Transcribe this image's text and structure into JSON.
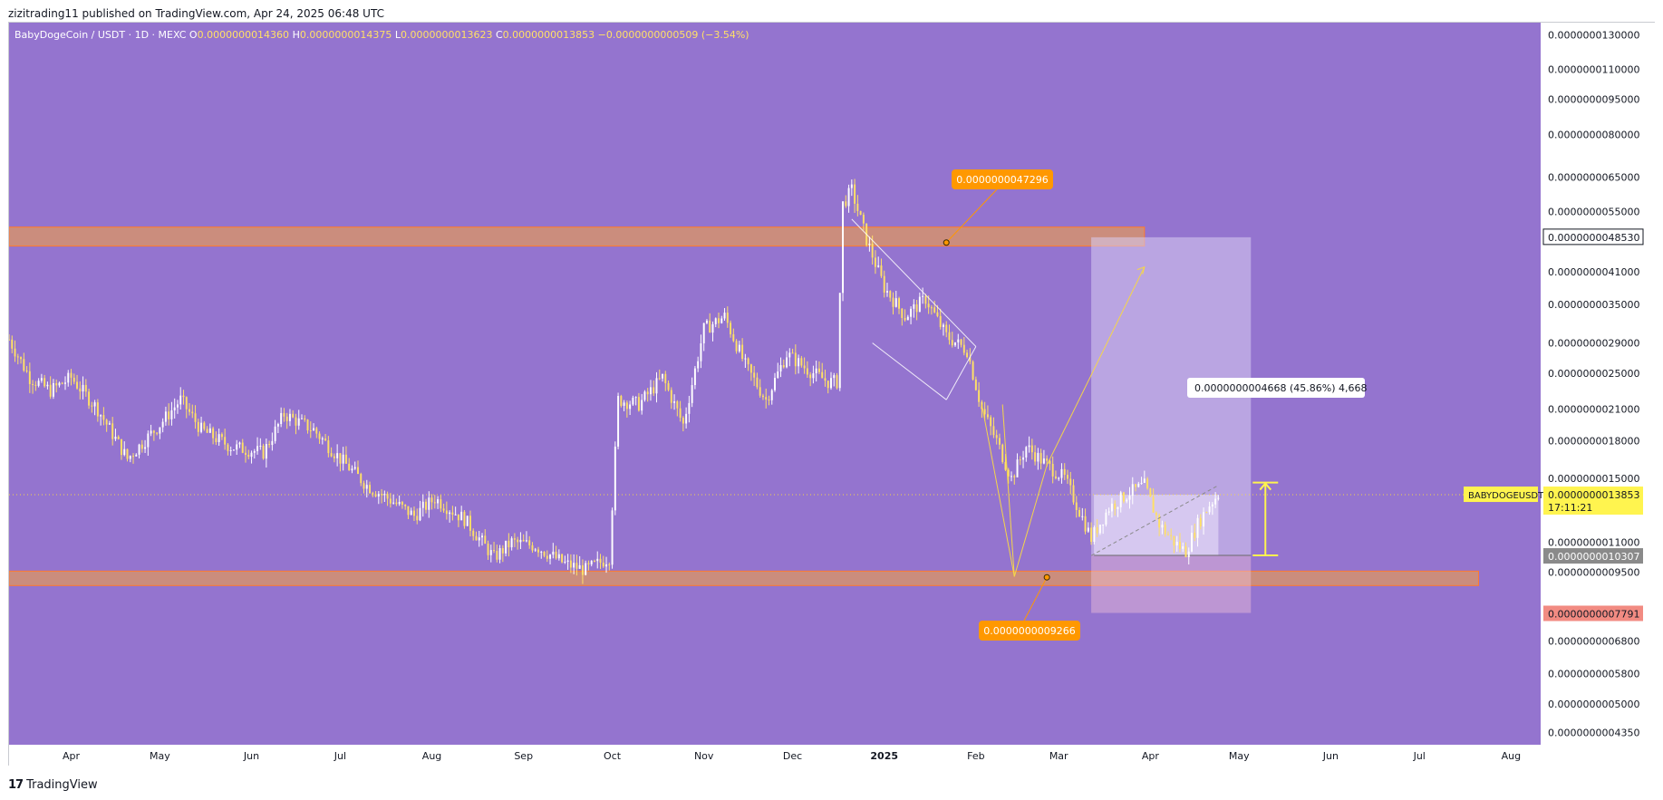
{
  "header": {
    "published_line": "zizitrading11 published on TradingView.com, Apr 24, 2025 06:48 UTC"
  },
  "footer": {
    "logo_text": "17",
    "brand": "TradingView"
  },
  "colors": {
    "background": "#9474cf",
    "candle": "#ffe066",
    "candle_white": "#ffffff",
    "zone": "#f7a23a",
    "orange_label": "#ff9800",
    "pattern_line": "#f5d54a",
    "price_label_bg": "#fff44f",
    "stop_label_bg": "#f28b82"
  },
  "chart_data": {
    "type": "candlestick",
    "symbol_line": {
      "pair": "BabyDogeCoin / USDT · 1D · MEXC",
      "o_label": "O",
      "o_value": "0.0000000014360",
      "h_label": "H",
      "h_value": "0.0000000014375",
      "l_label": "L",
      "l_value": "0.0000000013623",
      "c_label": "C",
      "c_value": "0.0000000013853",
      "change": "−0.0000000000509 (−3.54%)"
    },
    "y_axis": {
      "scale": "log",
      "ticks": [
        {
          "label": "0.0000000130000",
          "value": 1.3e-08
        },
        {
          "label": "0.0000000110000",
          "value": 1.1e-08
        },
        {
          "label": "0.0000000095000",
          "value": 9.5e-09
        },
        {
          "label": "0.0000000080000",
          "value": 8e-09
        },
        {
          "label": "0.0000000065000",
          "value": 6.5e-09
        },
        {
          "label": "0.0000000055000",
          "value": 5.5e-09
        },
        {
          "label": "0.0000000041000",
          "value": 4.1e-09
        },
        {
          "label": "0.0000000035000",
          "value": 3.5e-09
        },
        {
          "label": "0.0000000029000",
          "value": 2.9e-09
        },
        {
          "label": "0.0000000025000",
          "value": 2.5e-09
        },
        {
          "label": "0.0000000021000",
          "value": 2.1e-09
        },
        {
          "label": "0.0000000018000",
          "value": 1.8e-09
        },
        {
          "label": "0.0000000015000",
          "value": 1.5e-09
        },
        {
          "label": "0.0000000011000",
          "value": 1.1e-09
        },
        {
          "label": "0.0000000009500",
          "value": 9.5e-10
        },
        {
          "label": "0.0000000006800",
          "value": 6.8e-10
        },
        {
          "label": "0.0000000005800",
          "value": 5.8e-10
        },
        {
          "label": "0.0000000005000",
          "value": 5e-10
        },
        {
          "label": "0.0000000004350",
          "value": 4.35e-10
        }
      ],
      "range": [
        4.1e-10,
        1.38e-08
      ]
    },
    "x_axis": {
      "ticks": [
        {
          "label": "Apr",
          "date": "2024-04-01"
        },
        {
          "label": "May",
          "date": "2024-05-01"
        },
        {
          "label": "Jun",
          "date": "2024-06-01"
        },
        {
          "label": "Jul",
          "date": "2024-07-01"
        },
        {
          "label": "Aug",
          "date": "2024-08-01"
        },
        {
          "label": "Sep",
          "date": "2024-09-01"
        },
        {
          "label": "Oct",
          "date": "2024-10-01"
        },
        {
          "label": "Nov",
          "date": "2024-11-01"
        },
        {
          "label": "Dec",
          "date": "2024-12-01"
        },
        {
          "label": "2025",
          "date": "2025-01-01"
        },
        {
          "label": "Feb",
          "date": "2025-02-01"
        },
        {
          "label": "Mar",
          "date": "2025-03-01"
        },
        {
          "label": "Apr",
          "date": "2025-04-01"
        },
        {
          "label": "May",
          "date": "2025-05-01"
        },
        {
          "label": "Jun",
          "date": "2025-06-01"
        },
        {
          "label": "Jul",
          "date": "2025-07-01"
        },
        {
          "label": "Aug",
          "date": "2025-08-01"
        }
      ],
      "range": [
        "2024-03-11",
        "2025-08-11"
      ]
    },
    "price_path": [
      [
        "2024-03-11",
        2.95e-09
      ],
      [
        "2024-03-18",
        2.45e-09
      ],
      [
        "2024-03-25",
        2.3e-09
      ],
      [
        "2024-04-01",
        2.45e-09
      ],
      [
        "2024-04-10",
        2.1e-09
      ],
      [
        "2024-04-20",
        1.65e-09
      ],
      [
        "2024-05-01",
        1.95e-09
      ],
      [
        "2024-05-08",
        2.2e-09
      ],
      [
        "2024-05-15",
        1.9e-09
      ],
      [
        "2024-05-25",
        1.75e-09
      ],
      [
        "2024-06-05",
        1.7e-09
      ],
      [
        "2024-06-12",
        2.05e-09
      ],
      [
        "2024-06-22",
        1.9e-09
      ],
      [
        "2024-07-01",
        1.65e-09
      ],
      [
        "2024-07-10",
        1.45e-09
      ],
      [
        "2024-07-18",
        1.35e-09
      ],
      [
        "2024-07-26",
        1.25e-09
      ],
      [
        "2024-08-02",
        1.36e-09
      ],
      [
        "2024-08-12",
        1.23e-09
      ],
      [
        "2024-08-22",
        1.02e-09
      ],
      [
        "2024-08-28",
        1.1e-09
      ],
      [
        "2024-09-05",
        1.08e-09
      ],
      [
        "2024-09-15",
        9.9e-10
      ],
      [
        "2024-09-22",
        9.6e-10
      ],
      [
        "2024-09-30",
        1.02e-09
      ],
      [
        "2024-10-03",
        2.2e-09
      ],
      [
        "2024-10-10",
        2.15e-09
      ],
      [
        "2024-10-18",
        2.45e-09
      ],
      [
        "2024-10-25",
        1.95e-09
      ],
      [
        "2024-11-01",
        3.1e-09
      ],
      [
        "2024-11-08",
        3.3e-09
      ],
      [
        "2024-11-15",
        2.6e-09
      ],
      [
        "2024-11-22",
        2.2e-09
      ],
      [
        "2024-11-29",
        2.75e-09
      ],
      [
        "2024-12-06",
        2.55e-09
      ],
      [
        "2024-12-13",
        2.4e-09
      ],
      [
        "2024-12-16",
        2.4e-09
      ],
      [
        "2024-12-18",
        5.7e-09
      ],
      [
        "2024-12-21",
        6.1e-09
      ],
      [
        "2024-12-26",
        4.8e-09
      ],
      [
        "2025-01-01",
        3.8e-09
      ],
      [
        "2025-01-08",
        3.3e-09
      ],
      [
        "2025-01-15",
        3.6e-09
      ],
      [
        "2025-01-22",
        3e-09
      ],
      [
        "2025-01-29",
        2.8e-09
      ],
      [
        "2025-02-03",
        2.1e-09
      ],
      [
        "2025-02-08",
        1.8e-09
      ],
      [
        "2025-02-13",
        1.5e-09
      ],
      [
        "2025-02-18",
        1.75e-09
      ],
      [
        "2025-02-25",
        1.6e-09
      ],
      [
        "2025-03-03",
        1.5e-09
      ],
      [
        "2025-03-08",
        1.28e-09
      ],
      [
        "2025-03-12",
        1.12e-09
      ],
      [
        "2025-03-18",
        1.3e-09
      ],
      [
        "2025-03-25",
        1.4e-09
      ],
      [
        "2025-03-30",
        1.45e-09
      ],
      [
        "2025-04-04",
        1.2e-09
      ],
      [
        "2025-04-09",
        1.1e-09
      ],
      [
        "2025-04-13",
        1.05e-09
      ],
      [
        "2025-04-17",
        1.2e-09
      ],
      [
        "2025-04-21",
        1.32e-09
      ],
      [
        "2025-04-24",
        1.39e-09
      ]
    ],
    "zones": [
      {
        "name": "resistance",
        "top": 5.1e-09,
        "bottom": 4.65e-09,
        "from": "2024-03-11",
        "to": "2025-03-30"
      },
      {
        "name": "support",
        "top": 9.55e-10,
        "bottom": 8.9e-10,
        "from": "2024-03-11",
        "to": "2025-07-21"
      }
    ],
    "annotations": {
      "upper_label": {
        "text": "0.0000000047296",
        "value": 4.7296e-09,
        "date": "2025-01-22"
      },
      "lower_label": {
        "text": "0.0000000009266",
        "value": 9.266e-10,
        "date": "2025-02-25"
      },
      "measure_label": "0.0000000004668 (45.86%) 4,668"
    },
    "position_box": {
      "from": "2025-03-12",
      "to": "2025-05-05",
      "target": 4.853e-09,
      "entry": 1.0307e-09,
      "stop": 7.791e-10
    },
    "pattern_lines": [
      [
        [
          "2024-12-21",
          5.3e-09
        ],
        [
          "2025-02-01",
          2.85e-09
        ]
      ],
      [
        [
          "2024-12-28",
          2.9e-09
        ],
        [
          "2025-01-22",
          2.2e-09
        ]
      ],
      [
        [
          "2025-01-22",
          2.2e-09
        ],
        [
          "2025-02-01",
          2.85e-09
        ]
      ],
      [
        [
          "2025-02-03",
          2.15e-09
        ],
        [
          "2025-02-14",
          9.3e-10
        ]
      ],
      [
        [
          "2025-02-14",
          9.3e-10
        ],
        [
          "2025-02-25",
          1.6e-09
        ]
      ],
      [
        [
          "2025-02-25",
          1.6e-09
        ],
        [
          "2025-03-30",
          4.2e-09
        ]
      ],
      [
        [
          "2025-02-10",
          2.15e-09
        ],
        [
          "2025-02-14",
          9.3e-10
        ]
      ]
    ],
    "dashed_line": [
      [
        "2025-03-12",
        1.03e-09
      ],
      [
        "2025-04-24",
        1.45e-09
      ]
    ],
    "right_labels": {
      "target_price": "0.0000000048530",
      "symbol": "BABYDOGEUSDT",
      "last_price": "0.0000000013853",
      "countdown": "17:11:21",
      "entry_price": "0.0000000010307",
      "stop_price": "0.0000000007791"
    },
    "last_value": 1.3853e-09
  }
}
